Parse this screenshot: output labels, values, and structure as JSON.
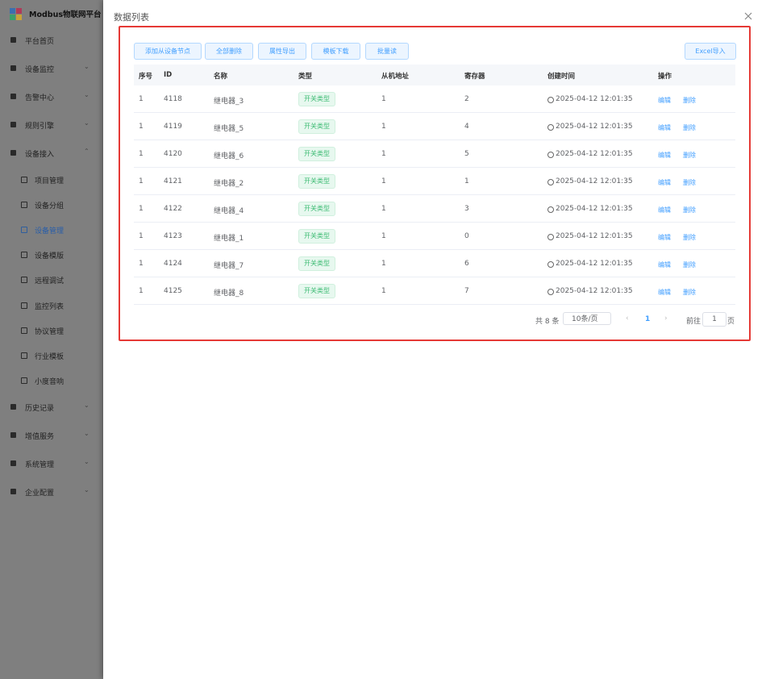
{
  "sidebar": {
    "title": "Modbus物联网平台",
    "menu": [
      {
        "label": "平台首页"
      },
      {
        "label": "设备监控"
      },
      {
        "label": "告警中心"
      },
      {
        "label": "规则引擎"
      },
      {
        "label": "设备接入",
        "children": [
          "项目管理",
          "设备分组",
          "设备管理",
          "设备模版",
          "远程调试",
          "监控列表",
          "协议管理",
          "行业模板",
          "小度音响"
        ]
      },
      {
        "label": "历史记录"
      },
      {
        "label": "增值服务"
      },
      {
        "label": "系统管理"
      },
      {
        "label": "企业配置"
      }
    ],
    "active": "设备管理"
  },
  "dialog": {
    "title": "数据列表",
    "toolbar": [
      "添加从设备节点",
      "全部删除",
      "属性导出",
      "模板下载",
      "批量读"
    ],
    "import_button": "Excel导入",
    "table": {
      "headers": [
        "序号",
        "ID",
        "名称",
        "类型",
        "从机地址",
        "寄存器",
        "创建时间",
        "操作"
      ],
      "rows": [
        [
          "1",
          "4118",
          "继电器_3",
          "开关类型",
          "1",
          "2",
          "2025-04-12 12:01:35"
        ],
        [
          "1",
          "4119",
          "继电器_5",
          "开关类型",
          "1",
          "4",
          "2025-04-12 12:01:35"
        ],
        [
          "1",
          "4120",
          "继电器_6",
          "开关类型",
          "1",
          "5",
          "2025-04-12 12:01:35"
        ],
        [
          "1",
          "4121",
          "继电器_2",
          "开关类型",
          "1",
          "1",
          "2025-04-12 12:01:35"
        ],
        [
          "1",
          "4122",
          "继电器_4",
          "开关类型",
          "1",
          "3",
          "2025-04-12 12:01:35"
        ],
        [
          "1",
          "4123",
          "继电器_1",
          "开关类型",
          "1",
          "0",
          "2025-04-12 12:01:35"
        ],
        [
          "1",
          "4124",
          "继电器_7",
          "开关类型",
          "1",
          "6",
          "2025-04-12 12:01:35"
        ],
        [
          "1",
          "4125",
          "继电器_8",
          "开关类型",
          "1",
          "7",
          "2025-04-12 12:01:35"
        ]
      ],
      "actions": [
        "编辑",
        "删除"
      ]
    },
    "pagination": {
      "total": "共 8 条",
      "page_size": "10条/页",
      "current": "1",
      "goto": "前往",
      "goto_value": "1",
      "page_unit": "页"
    }
  }
}
